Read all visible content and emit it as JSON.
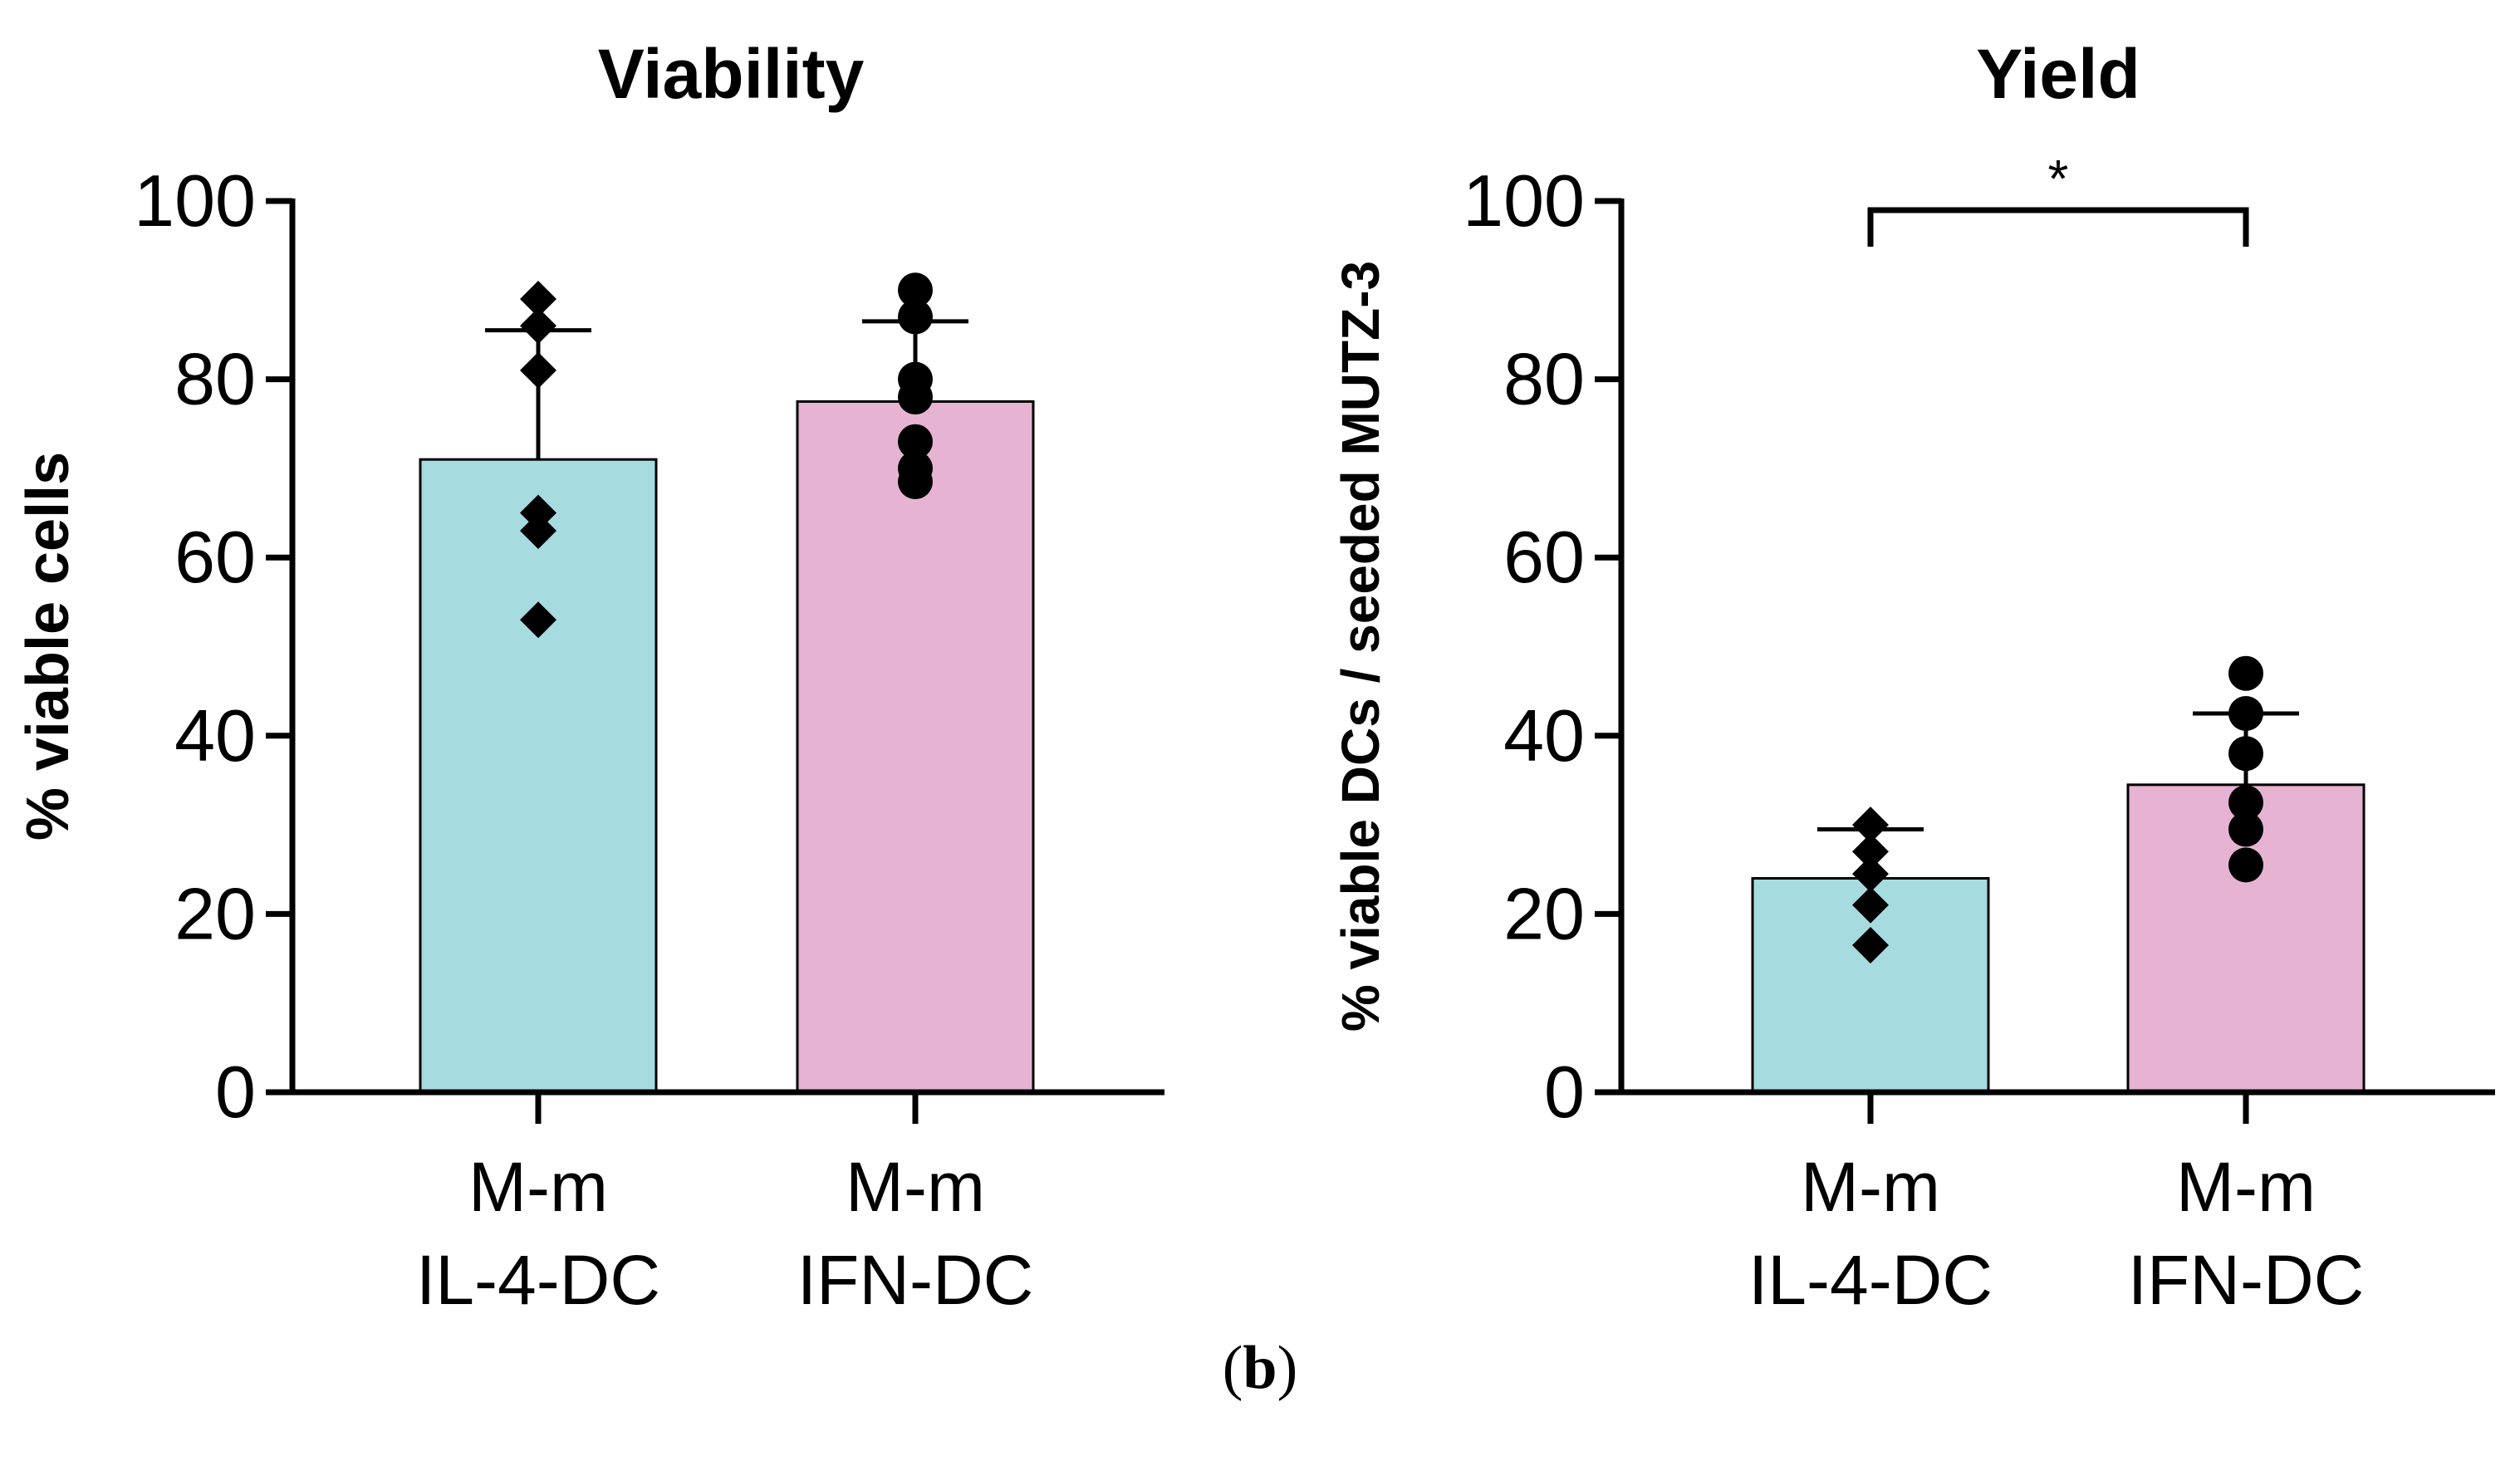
{
  "figure_label": {
    "open": "(",
    "letter": "b",
    "close": ")"
  },
  "chart_data": [
    {
      "type": "bar",
      "title": "Viability",
      "xlabel": "",
      "ylabel": "% viable cells",
      "ylim": [
        0,
        100
      ],
      "yticks": [
        0,
        20,
        40,
        60,
        80,
        100
      ],
      "categories": [
        {
          "line1": "M-m",
          "line2": "IL-4-DC"
        },
        {
          "line1": "M-m",
          "line2": "IFN-DC"
        }
      ],
      "values": [
        71,
        77.5
      ],
      "error_upper": [
        85.5,
        86.5
      ],
      "points": [
        [
          89,
          86,
          81,
          65,
          63,
          53
        ],
        [
          90,
          87,
          80,
          78,
          73,
          70,
          68.5
        ]
      ],
      "markers": [
        "diamond",
        "circle"
      ],
      "significance": null
    },
    {
      "type": "bar",
      "title": "Yield",
      "xlabel": "",
      "ylabel": "% viable DCs / seeded MUTZ-3",
      "ylim": [
        0,
        100
      ],
      "yticks": [
        0,
        20,
        40,
        60,
        80,
        100
      ],
      "categories": [
        {
          "line1": "M-m",
          "line2": "IL-4-DC"
        },
        {
          "line1": "M-m",
          "line2": "IFN-DC"
        }
      ],
      "values": [
        24,
        34.5
      ],
      "error_upper": [
        29.5,
        42.5
      ],
      "points": [
        [
          30,
          27,
          24.5,
          21,
          16.5
        ],
        [
          47,
          42.5,
          38,
          32.5,
          29.5,
          25.5
        ]
      ],
      "markers": [
        "diamond",
        "circle"
      ],
      "significance": {
        "between": [
          0,
          1
        ],
        "label": "*"
      }
    }
  ],
  "colors": {
    "il4_bar": "#a6dbe0",
    "ifn_bar": "#e6b3d3",
    "ink": "#000000"
  }
}
